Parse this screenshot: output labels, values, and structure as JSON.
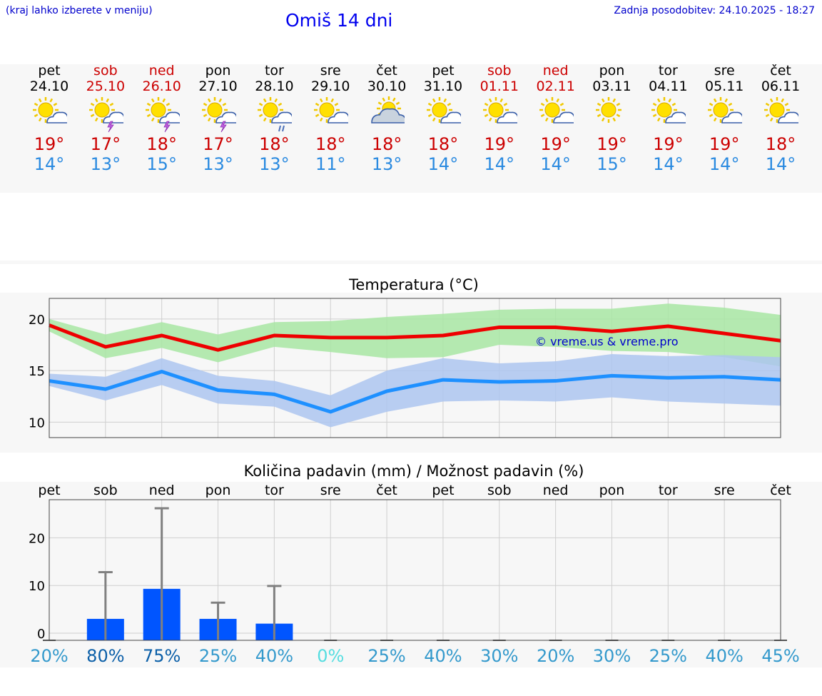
{
  "header": {
    "left_note": "(kraj lahko izberete v meniju)",
    "title": "Omiš 14 dni",
    "updated": "Zadnja posodobitev: 24.10.2025 - 18:27"
  },
  "colors": {
    "max_temp": "#ee0000",
    "min_temp": "#1e90ff",
    "weekend": "#cc0000",
    "bar": "#0055ff",
    "max_band": "#a8e6a3",
    "min_band": "#adc6f0"
  },
  "days": [
    {
      "wd": "pet",
      "date": "24.10",
      "weekend": false,
      "icon": "sun-cloud-icon",
      "max": "19°",
      "min": "14°"
    },
    {
      "wd": "sob",
      "date": "25.10",
      "weekend": true,
      "icon": "sun-cloud-lightning-icon",
      "max": "17°",
      "min": "13°"
    },
    {
      "wd": "ned",
      "date": "26.10",
      "weekend": true,
      "icon": "sun-cloud-lightning-icon",
      "max": "18°",
      "min": "15°"
    },
    {
      "wd": "pon",
      "date": "27.10",
      "weekend": false,
      "icon": "sun-cloud-lightning-icon",
      "max": "17°",
      "min": "13°"
    },
    {
      "wd": "tor",
      "date": "28.10",
      "weekend": false,
      "icon": "sun-cloud-rain-icon",
      "max": "18°",
      "min": "13°"
    },
    {
      "wd": "sre",
      "date": "29.10",
      "weekend": false,
      "icon": "sun-cloud-icon",
      "max": "18°",
      "min": "11°"
    },
    {
      "wd": "čet",
      "date": "30.10",
      "weekend": false,
      "icon": "cloud-sun-icon",
      "max": "18°",
      "min": "13°"
    },
    {
      "wd": "pet",
      "date": "31.10",
      "weekend": false,
      "icon": "sun-cloud-icon",
      "max": "18°",
      "min": "14°"
    },
    {
      "wd": "sob",
      "date": "01.11",
      "weekend": true,
      "icon": "sun-cloud-icon",
      "max": "19°",
      "min": "14°"
    },
    {
      "wd": "ned",
      "date": "02.11",
      "weekend": true,
      "icon": "sun-cloud-icon",
      "max": "19°",
      "min": "14°"
    },
    {
      "wd": "pon",
      "date": "03.11",
      "weekend": false,
      "icon": "sun-icon",
      "max": "19°",
      "min": "15°"
    },
    {
      "wd": "tor",
      "date": "04.11",
      "weekend": false,
      "icon": "sun-cloud-icon",
      "max": "19°",
      "min": "14°"
    },
    {
      "wd": "sre",
      "date": "05.11",
      "weekend": false,
      "icon": "sun-cloud-icon",
      "max": "19°",
      "min": "14°"
    },
    {
      "wd": "čet",
      "date": "06.11",
      "weekend": false,
      "icon": "sun-cloud-icon",
      "max": "18°",
      "min": "14°"
    }
  ],
  "chart_data": [
    {
      "type": "line",
      "title": "Temperatura (°C)",
      "ylim": [
        8.5,
        22
      ],
      "yticks": [
        10,
        15,
        20
      ],
      "grid": true,
      "watermark": "© vreme.us & vreme.pro",
      "series": [
        {
          "values": [
            19.4,
            17.3,
            18.4,
            17.0,
            18.4,
            18.2,
            18.2,
            18.4,
            19.2,
            19.2,
            18.8,
            19.3,
            18.6,
            17.9
          ],
          "band_upper": [
            20.0,
            18.5,
            19.7,
            18.5,
            19.7,
            19.8,
            20.2,
            20.5,
            20.9,
            21.0,
            21.0,
            21.5,
            21.1,
            20.4
          ],
          "band_lower": [
            18.8,
            16.2,
            17.2,
            15.8,
            17.3,
            16.8,
            16.2,
            16.3,
            17.5,
            17.3,
            16.9,
            16.8,
            16.3,
            15.4
          ]
        },
        {
          "values": [
            14.0,
            13.2,
            14.9,
            13.1,
            12.7,
            11.0,
            13.0,
            14.1,
            13.9,
            14.0,
            14.5,
            14.3,
            14.4,
            14.1
          ],
          "band_upper": [
            14.7,
            14.4,
            16.2,
            14.5,
            14.0,
            12.6,
            15.0,
            16.2,
            15.7,
            15.9,
            16.6,
            16.4,
            16.5,
            16.3
          ],
          "band_lower": [
            13.5,
            12.1,
            13.6,
            11.8,
            11.5,
            9.5,
            11.0,
            12.0,
            12.1,
            12.0,
            12.4,
            12.0,
            11.8,
            11.6
          ]
        }
      ]
    },
    {
      "type": "bar",
      "title": "Količina padavin (mm) / Možnost padavin (%)",
      "categories": [
        "pet",
        "sob",
        "ned",
        "pon",
        "tor",
        "sre",
        "čet",
        "pet",
        "sob",
        "ned",
        "pon",
        "tor",
        "sre",
        "čet"
      ],
      "values": [
        0,
        3.0,
        9.3,
        3.0,
        2.0,
        0,
        0,
        0,
        0,
        0,
        0,
        0,
        0,
        0
      ],
      "error_upper": [
        0,
        12.8,
        26.2,
        6.4,
        9.9,
        0,
        0,
        0,
        0,
        0,
        0,
        0,
        0,
        0
      ],
      "ylim": [
        -1.5,
        28
      ],
      "yticks": [
        0,
        10,
        20
      ],
      "grid": true,
      "probability": [
        "20%",
        "80%",
        "75%",
        "25%",
        "40%",
        "0%",
        "25%",
        "40%",
        "30%",
        "20%",
        "30%",
        "25%",
        "40%",
        "45%"
      ],
      "probability_colors": [
        "#3399cc",
        "#0b5fa8",
        "#0b5fa8",
        "#3399cc",
        "#3399cc",
        "#55dde0",
        "#3399cc",
        "#3399cc",
        "#3399cc",
        "#3399cc",
        "#3399cc",
        "#3399cc",
        "#3399cc",
        "#3399cc"
      ]
    }
  ]
}
